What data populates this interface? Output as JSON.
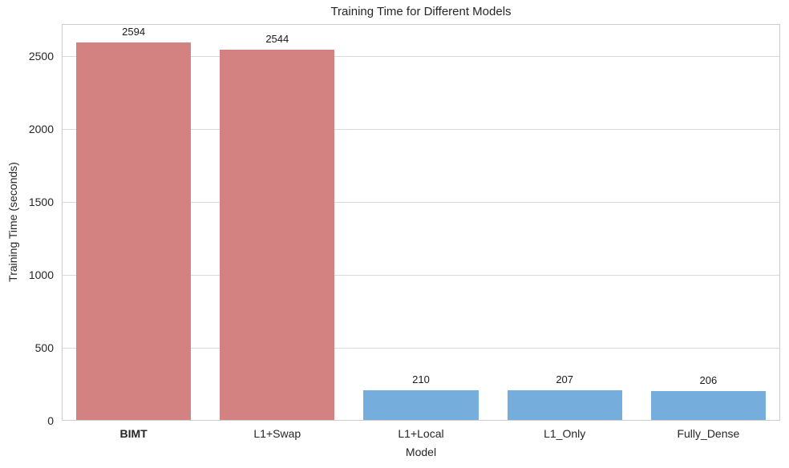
{
  "chart_data": {
    "type": "bar",
    "title": "Training Time for Different Models",
    "xlabel": "Model",
    "ylabel": "Training Time (seconds)",
    "categories": [
      "BIMT",
      "L1+Swap",
      "L1+Local",
      "L1_Only",
      "Fully_Dense"
    ],
    "values": [
      2594,
      2544,
      210,
      207,
      206
    ],
    "value_labels": [
      "2594",
      "2544",
      "210",
      "207",
      "206"
    ],
    "bar_colors": [
      "#d48182",
      "#d48182",
      "#75aedd",
      "#75aedd",
      "#75aedd"
    ],
    "emphasized_category": "BIMT",
    "yticks": [
      0,
      500,
      1000,
      1500,
      2000,
      2500
    ],
    "ylim": [
      0,
      2720
    ],
    "grid": "horizontal",
    "legend": "none",
    "grid_color": "#d9d9d9",
    "spine_color": "#cccccc",
    "background": "#ffffff"
  }
}
